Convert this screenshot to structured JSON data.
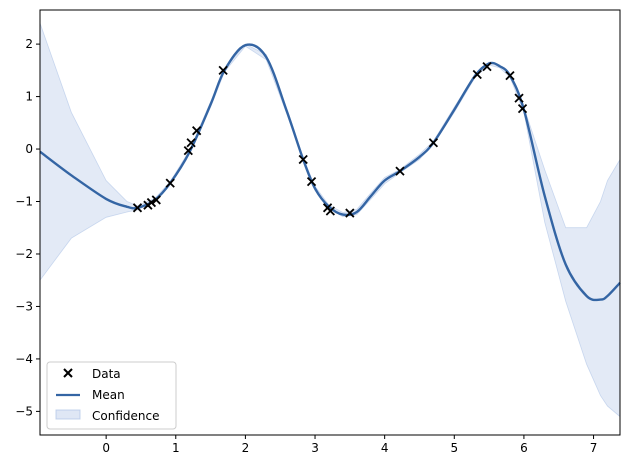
{
  "chart_data": {
    "type": "line",
    "xlim": [
      -0.95,
      7.38
    ],
    "ylim": [
      -5.45,
      2.65
    ],
    "x_ticks": [
      0,
      1,
      2,
      3,
      4,
      5,
      6,
      7
    ],
    "y_ticks": [
      -5,
      -4,
      -3,
      -2,
      -1,
      0,
      1,
      2
    ],
    "x_tick_labels": [
      "0",
      "1",
      "2",
      "3",
      "4",
      "5",
      "6",
      "7"
    ],
    "y_tick_labels": [
      "−5",
      "−4",
      "−3",
      "−2",
      "−1",
      "0",
      "1",
      "2"
    ],
    "grid": false,
    "legend_position": "lower-left",
    "series": [
      {
        "name": "Data",
        "kind": "scatter",
        "marker": "x",
        "color": "#000000",
        "x": [
          0.45,
          0.6,
          0.65,
          0.72,
          0.92,
          1.18,
          1.22,
          1.3,
          1.68,
          2.83,
          2.95,
          3.18,
          3.22,
          3.5,
          4.22,
          4.7,
          5.33,
          5.47,
          5.8,
          5.93,
          5.98
        ],
        "y": [
          -1.12,
          -1.07,
          -1.02,
          -0.97,
          -0.65,
          -0.03,
          0.12,
          0.35,
          1.5,
          -0.2,
          -0.62,
          -1.12,
          -1.18,
          -1.22,
          -0.42,
          0.12,
          1.42,
          1.57,
          1.4,
          0.97,
          0.77
        ]
      },
      {
        "name": "Mean",
        "kind": "line",
        "color": "#3465a4",
        "x": [
          -0.95,
          -0.5,
          0.0,
          0.3,
          0.45,
          0.7,
          0.92,
          1.2,
          1.5,
          1.7,
          2.0,
          2.3,
          2.6,
          2.83,
          3.0,
          3.2,
          3.4,
          3.6,
          3.8,
          4.0,
          4.22,
          4.5,
          4.7,
          5.0,
          5.3,
          5.5,
          5.65,
          5.8,
          6.0,
          6.3,
          6.6,
          6.9,
          7.1,
          7.2,
          7.38
        ],
        "y": [
          -0.05,
          -0.5,
          -0.95,
          -1.1,
          -1.12,
          -0.97,
          -0.65,
          -0.05,
          0.85,
          1.5,
          1.98,
          1.75,
          0.7,
          -0.2,
          -0.75,
          -1.1,
          -1.25,
          -1.2,
          -0.9,
          -0.6,
          -0.42,
          -0.15,
          0.12,
          0.75,
          1.4,
          1.63,
          1.58,
          1.4,
          0.75,
          -0.9,
          -2.2,
          -2.8,
          -2.87,
          -2.8,
          -2.55
        ]
      },
      {
        "name": "Confidence",
        "kind": "band",
        "color": "#aec3e6",
        "x": [
          -0.95,
          -0.5,
          0.0,
          0.3,
          0.45,
          0.7,
          0.92,
          1.2,
          1.5,
          1.7,
          2.0,
          2.3,
          2.6,
          2.83,
          3.0,
          3.2,
          3.4,
          3.6,
          3.8,
          4.0,
          4.22,
          4.5,
          4.7,
          5.0,
          5.3,
          5.5,
          5.65,
          5.8,
          6.0,
          6.3,
          6.6,
          6.9,
          7.1,
          7.2,
          7.38
        ],
        "upper": [
          2.4,
          0.7,
          -0.6,
          -1.0,
          -1.08,
          -0.94,
          -0.62,
          -0.02,
          0.9,
          1.53,
          2.0,
          1.8,
          0.75,
          -0.17,
          -0.71,
          -1.07,
          -1.21,
          -1.15,
          -0.84,
          -0.54,
          -0.39,
          -0.1,
          0.15,
          0.8,
          1.43,
          1.66,
          1.61,
          1.43,
          0.8,
          -0.4,
          -1.5,
          -1.5,
          -1.0,
          -0.6,
          -0.2
        ],
        "lower": [
          -2.5,
          -1.7,
          -1.3,
          -1.2,
          -1.16,
          -1.0,
          -0.68,
          -0.08,
          0.8,
          1.47,
          1.96,
          1.7,
          0.65,
          -0.23,
          -0.79,
          -1.13,
          -1.29,
          -1.25,
          -0.96,
          -0.66,
          -0.45,
          -0.2,
          0.09,
          0.7,
          1.37,
          1.6,
          1.55,
          1.37,
          0.7,
          -1.4,
          -2.9,
          -4.1,
          -4.7,
          -4.9,
          -5.1
        ]
      }
    ]
  }
}
